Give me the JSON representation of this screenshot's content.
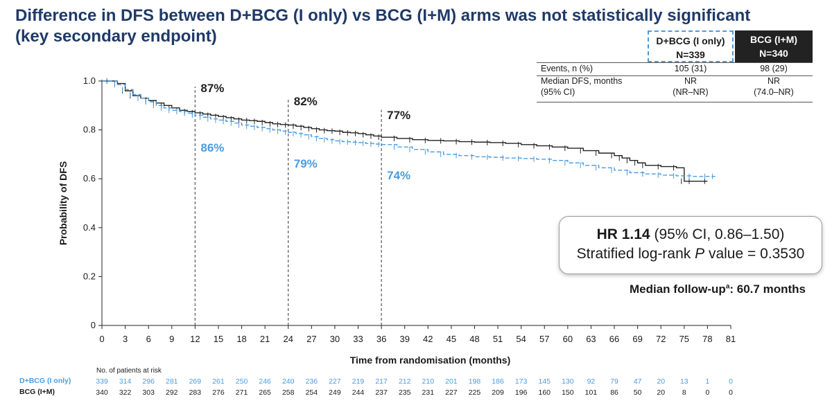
{
  "title": {
    "line1": "Difference in DFS between D+BCG (I only) vs BCG (I+M) arms was not statistically significant",
    "line2": "(key secondary endpoint)"
  },
  "arm_table": {
    "headers": [
      {
        "arm": "D+BCG (I only)",
        "n": "N=339"
      },
      {
        "arm": "BCG (I+M)",
        "n": "N=340"
      }
    ],
    "rows": [
      {
        "label": "Events, n (%)",
        "d": "105 (31)",
        "b": "98 (29)"
      },
      {
        "label": "Median DFS, months",
        "label2": "(95% CI)",
        "d": "NR",
        "d2": "(NR–NR)",
        "b": "NR",
        "b2": "(74.0–NR)"
      }
    ]
  },
  "hr_box": {
    "hr_label": "HR 1.14",
    "ci": "(95% CI, 0.86–1.50)",
    "logrank_pre": "Stratified log-rank ",
    "logrank_p": "P",
    "logrank_post": " value = 0.3530"
  },
  "followup": {
    "text": "Median follow-up",
    "sup": "a",
    "value": ": 60.7 months"
  },
  "colors": {
    "d_bcg": "#4b9be0",
    "bcg": "#222222",
    "title": "#1f3a68"
  },
  "chart_data": {
    "type": "line",
    "title": "",
    "xlabel": "Time from randomisation (months)",
    "ylabel": "Probability of DFS",
    "xlim": [
      0,
      81
    ],
    "ylim": [
      0,
      1.0
    ],
    "xticks": [
      0,
      3,
      6,
      9,
      12,
      15,
      18,
      21,
      24,
      27,
      30,
      33,
      36,
      39,
      42,
      45,
      48,
      51,
      54,
      57,
      60,
      63,
      66,
      69,
      72,
      75,
      78,
      81
    ],
    "yticks": [
      0,
      0.2,
      0.4,
      0.6,
      0.8,
      1.0
    ],
    "grid": false,
    "landmarks": [
      {
        "x": 12,
        "label_b": "87%",
        "label_d": "86%"
      },
      {
        "x": 24,
        "label_b": "82%",
        "label_d": "79%"
      },
      {
        "x": 36,
        "label_b": "77%",
        "label_d": "74%"
      }
    ],
    "series": [
      {
        "name": "BCG (I+M)",
        "style": "solid",
        "color": "#222222",
        "x": [
          0,
          1,
          2,
          3,
          4,
          5,
          6,
          7,
          8,
          9,
          10,
          11,
          12,
          13,
          14,
          15,
          16,
          17,
          18,
          19,
          20,
          21,
          22,
          23,
          24,
          25,
          26,
          27,
          28,
          29,
          30,
          31,
          32,
          33,
          34,
          35,
          36,
          38,
          40,
          42,
          44,
          46,
          48,
          50,
          52,
          54,
          56,
          58,
          60,
          62,
          64,
          66,
          67,
          68,
          69,
          70,
          72,
          74,
          75,
          76,
          78
        ],
        "y": [
          1.0,
          1.0,
          0.99,
          0.96,
          0.94,
          0.93,
          0.92,
          0.91,
          0.9,
          0.89,
          0.88,
          0.875,
          0.87,
          0.865,
          0.86,
          0.855,
          0.85,
          0.845,
          0.84,
          0.838,
          0.835,
          0.83,
          0.825,
          0.822,
          0.82,
          0.815,
          0.81,
          0.805,
          0.8,
          0.797,
          0.795,
          0.79,
          0.788,
          0.785,
          0.78,
          0.775,
          0.77,
          0.765,
          0.76,
          0.757,
          0.755,
          0.752,
          0.75,
          0.748,
          0.745,
          0.74,
          0.735,
          0.73,
          0.725,
          0.715,
          0.705,
          0.695,
          0.685,
          0.675,
          0.665,
          0.655,
          0.65,
          0.645,
          0.59,
          0.59,
          0.59
        ]
      },
      {
        "name": "D+BCG (I only)",
        "style": "dashed",
        "color": "#4b9be0",
        "x": [
          0,
          1,
          2,
          3,
          4,
          5,
          6,
          7,
          8,
          9,
          10,
          11,
          12,
          13,
          14,
          15,
          16,
          17,
          18,
          19,
          20,
          21,
          22,
          23,
          24,
          25,
          26,
          27,
          28,
          29,
          30,
          31,
          32,
          33,
          34,
          35,
          36,
          38,
          40,
          42,
          44,
          46,
          48,
          50,
          52,
          54,
          56,
          58,
          60,
          62,
          64,
          66,
          68,
          70,
          72,
          74,
          76,
          78,
          79
        ],
        "y": [
          1.0,
          1.0,
          0.985,
          0.965,
          0.945,
          0.93,
          0.915,
          0.9,
          0.89,
          0.88,
          0.875,
          0.868,
          0.86,
          0.852,
          0.845,
          0.84,
          0.835,
          0.828,
          0.82,
          0.815,
          0.81,
          0.805,
          0.8,
          0.795,
          0.79,
          0.785,
          0.78,
          0.772,
          0.765,
          0.76,
          0.755,
          0.752,
          0.75,
          0.748,
          0.745,
          0.742,
          0.74,
          0.73,
          0.72,
          0.71,
          0.7,
          0.695,
          0.69,
          0.688,
          0.685,
          0.683,
          0.68,
          0.675,
          0.665,
          0.655,
          0.645,
          0.635,
          0.625,
          0.62,
          0.615,
          0.612,
          0.61,
          0.61,
          0.61
        ]
      }
    ],
    "at_risk": {
      "title": "No. of patients at risk",
      "times": [
        0,
        3,
        6,
        9,
        12,
        15,
        18,
        21,
        24,
        27,
        30,
        33,
        36,
        39,
        42,
        45,
        48,
        51,
        54,
        57,
        60,
        63,
        66,
        69,
        72,
        75,
        78,
        81
      ],
      "rows": [
        {
          "name": "D+BCG (I only)",
          "values": [
            "339",
            "314",
            "296",
            "281",
            "269",
            "261",
            "250",
            "246",
            "240",
            "236",
            "227",
            "219",
            "217",
            "212",
            "210",
            "201",
            "198",
            "186",
            "173",
            "145",
            "130",
            "92",
            "79",
            "47",
            "20",
            "13",
            "1",
            "0"
          ]
        },
        {
          "name": "BCG (I+M)",
          "values": [
            "340",
            "322",
            "303",
            "292",
            "283",
            "276",
            "271",
            "265",
            "258",
            "254",
            "249",
            "244",
            "237",
            "235",
            "231",
            "227",
            "225",
            "209",
            "196",
            "160",
            "150",
            "101",
            "86",
            "50",
            "20",
            "8",
            "0",
            "0"
          ]
        }
      ]
    }
  }
}
